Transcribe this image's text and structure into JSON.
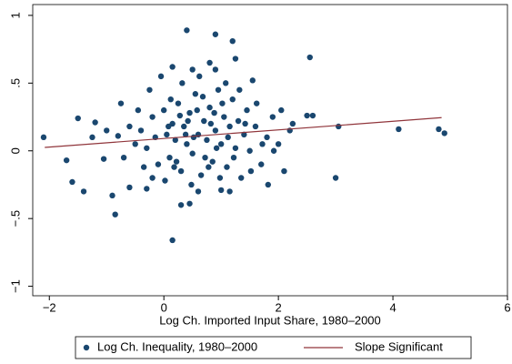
{
  "chart_data": {
    "type": "scatter",
    "xlabel": "Log Ch. Imported Input Share, 1980–2000",
    "xlim": [
      -2.29,
      6.0
    ],
    "ylim": [
      -1.07,
      1.08
    ],
    "xticks": [
      {
        "value": -2,
        "label": "−2"
      },
      0,
      2,
      4,
      6
    ],
    "yticks": [
      {
        "value": -1,
        "label": "−1"
      },
      {
        "value": -0.5,
        "label": "−.5"
      },
      0,
      {
        "value": 0.5,
        "label": ".5"
      },
      1
    ],
    "legend": "bottom",
    "series": [
      {
        "name": "Log Ch. Inequality, 1980–2000",
        "type": "scatter",
        "color": "#1a476f",
        "x": [
          -2.1,
          -1.7,
          -1.6,
          -1.4,
          -1.05,
          -0.9,
          -0.85,
          -0.6,
          -0.3,
          0.15,
          0.4,
          0.15,
          0.9,
          1.2,
          1.25,
          0.8,
          0.45,
          0.3,
          1.0,
          2.55,
          3.0,
          3.05,
          4.1,
          4.8,
          4.9,
          2.5,
          2.6,
          2.25,
          -1.5,
          -1.2,
          -1.25,
          -1.0,
          -0.8,
          -0.5,
          -0.4,
          -0.3,
          -0.2,
          -0.1,
          0,
          0.05,
          0.1,
          0.15,
          0.2,
          0.25,
          0.3,
          0.35,
          0.4,
          0.45,
          0.5,
          0.55,
          0.6,
          0.65,
          0.7,
          0.75,
          0.8,
          0.85,
          0.9,
          0.95,
          1.0,
          1.05,
          1.1,
          1.15,
          1.2,
          1.25,
          1.3,
          1.35,
          1.4,
          1.45,
          1.5,
          1.6,
          1.7,
          1.8,
          1.9,
          2.0,
          2.1,
          2.2,
          -0.45,
          -0.35,
          -0.25,
          -0.15,
          -0.05,
          0.02,
          0.12,
          0.22,
          0.32,
          0.42,
          0.52,
          0.62,
          0.72,
          0.82,
          0.92,
          1.02,
          1.12,
          1.22,
          1.32,
          1.42,
          1.52,
          1.62,
          1.72,
          1.82,
          1.92,
          0.58,
          0.68,
          0.78,
          0.88,
          0.98,
          1.08,
          0.48,
          0.38,
          0.28,
          0.18,
          0.08,
          -0.6,
          -0.7,
          -0.75,
          0.6,
          1.15,
          0.9,
          0.5,
          -0.2,
          1.55,
          2.05
        ],
        "values": [
          0.1,
          -0.07,
          -0.23,
          -0.3,
          -0.06,
          -0.33,
          -0.47,
          -0.27,
          -0.28,
          -0.66,
          0.89,
          0.62,
          0.86,
          0.81,
          0.68,
          0.65,
          -0.39,
          -0.4,
          -0.29,
          0.69,
          -0.2,
          0.18,
          0.16,
          0.16,
          0.13,
          0.26,
          0.26,
          0.2,
          0.24,
          0.21,
          0.1,
          0.15,
          0.11,
          0.05,
          0.15,
          0.02,
          0.25,
          -0.1,
          0.3,
          0.12,
          -0.05,
          0.2,
          0.08,
          0.35,
          -0.15,
          0.18,
          0.05,
          0.28,
          -0.02,
          0.42,
          0.12,
          -0.18,
          0.22,
          0.08,
          0.32,
          -0.08,
          0.15,
          0.45,
          0.05,
          0.25,
          -0.12,
          0.18,
          0.38,
          0.02,
          0.22,
          -0.2,
          0.12,
          0.3,
          0.0,
          0.18,
          -0.1,
          0.1,
          0.25,
          0.05,
          -0.15,
          0.15,
          0.3,
          -0.12,
          0.45,
          0.1,
          0.55,
          -0.22,
          0.38,
          -0.08,
          0.5,
          0.22,
          0.1,
          0.55,
          -0.05,
          0.2,
          0.02,
          0.35,
          0.1,
          -0.05,
          0.45,
          0.2,
          -0.15,
          0.35,
          0.05,
          -0.25,
          0.0,
          0.3,
          0.4,
          -0.12,
          0.28,
          -0.2,
          0.5,
          -0.25,
          0.12,
          0.26,
          -0.12,
          0.18,
          0.18,
          -0.05,
          0.35,
          -0.3,
          -0.3,
          0.6,
          0.6,
          -0.2,
          0.52,
          0.3
        ]
      },
      {
        "name": "Slope Significant",
        "type": "line",
        "color": "#90353b",
        "x": [
          -2.08,
          4.85
        ],
        "values": [
          0.025,
          0.245
        ]
      }
    ]
  }
}
